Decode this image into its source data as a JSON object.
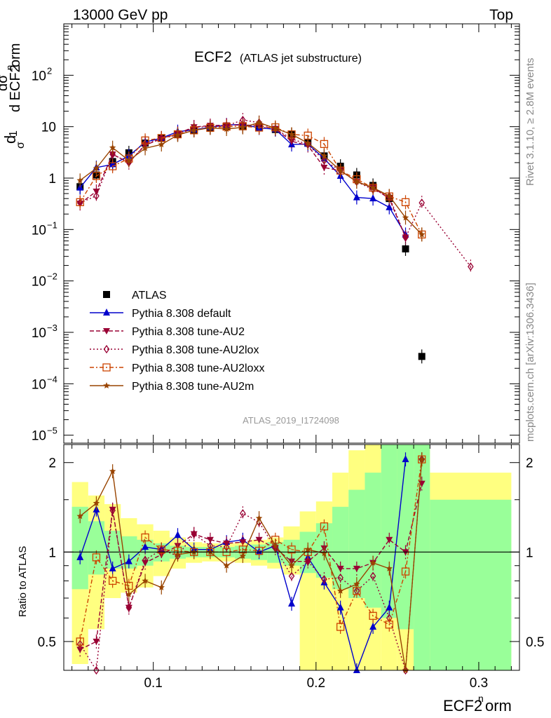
{
  "header": {
    "left": "13000 GeV pp",
    "right": "Top"
  },
  "side_labels": {
    "rivet": "Rivet 3.1.10, ≥ 2.8M events",
    "mcplots": "mcplots.cern.ch [arXiv:1306.3436]"
  },
  "chart_data": [
    {
      "type": "scatter",
      "panel": "main",
      "title": "ECF2",
      "subtitle": "(ATLAS jet substructure)",
      "analysis_tag": "ATLAS_2019_I1724098",
      "xlabel": "ECF2norm",
      "ylabel": "1/σ dσ/d ECF2norm",
      "xlim": [
        0.045,
        0.325
      ],
      "ylim": [
        7e-06,
        1000
      ],
      "yscale": "log",
      "x_ticks": [
        "0.1",
        "0.2",
        "0.3"
      ],
      "y_ticks": [
        "10^-5",
        "10^-4",
        "10^-3",
        "10^-2",
        "10^-1",
        "1",
        "10",
        "10^2"
      ],
      "legend_position": "lower-left",
      "series": [
        {
          "name": "ATLAS",
          "color": "#000000",
          "marker": "square",
          "x": [
            0.055,
            0.065,
            0.075,
            0.085,
            0.095,
            0.105,
            0.115,
            0.125,
            0.135,
            0.145,
            0.155,
            0.165,
            0.175,
            0.185,
            0.195,
            0.205,
            0.215,
            0.225,
            0.235,
            0.245,
            0.255,
            0.265
          ],
          "y": [
            0.68,
            1.15,
            2.1,
            3.1,
            4.8,
            5.9,
            7.0,
            8.5,
            9.5,
            10.0,
            10.0,
            9.5,
            8.8,
            7.0,
            4.8,
            2.7,
            1.7,
            1.15,
            0.72,
            0.4,
            0.042,
            0.00034
          ]
        },
        {
          "name": "Pythia 8.308 default",
          "color": "#0000cc",
          "marker": "triangle-up",
          "x": [
            0.055,
            0.065,
            0.075,
            0.085,
            0.095,
            0.105,
            0.115,
            0.125,
            0.135,
            0.145,
            0.155,
            0.165,
            0.175,
            0.185,
            0.195,
            0.205,
            0.215,
            0.225,
            0.235,
            0.245,
            0.255,
            0.265
          ],
          "y": [
            0.65,
            1.6,
            1.85,
            2.7,
            5.0,
            6.0,
            8.0,
            8.7,
            9.7,
            10.8,
            11.0,
            9.5,
            8.9,
            4.5,
            4.6,
            2.4,
            1.1,
            0.42,
            0.4,
            0.27,
            0.08,
            null
          ]
        },
        {
          "name": "Pythia 8.308 tune-AU2",
          "color": "#990033",
          "marker": "triangle-down",
          "x": [
            0.055,
            0.065,
            0.075,
            0.085,
            0.095,
            0.105,
            0.115,
            0.125,
            0.135,
            0.145,
            0.155,
            0.165,
            0.175,
            0.185,
            0.195,
            0.205,
            0.215,
            0.225,
            0.235,
            0.245,
            0.255,
            0.265
          ],
          "y": [
            0.32,
            0.55,
            2.9,
            2.0,
            4.4,
            5.8,
            7.4,
            9.8,
            10.5,
            10.7,
            10.8,
            10.5,
            9.1,
            5.2,
            4.3,
            1.6,
            1.4,
            0.85,
            0.65,
            0.4,
            0.07,
            null
          ]
        },
        {
          "name": "Pythia 8.308 tune-AU2lox",
          "color": "#990033",
          "marker": "diamond-open",
          "x": [
            0.055,
            0.065,
            0.075,
            0.085,
            0.095,
            0.105,
            0.115,
            0.125,
            0.135,
            0.145,
            0.155,
            0.165,
            0.175,
            0.185,
            0.195,
            0.205,
            0.215,
            0.225,
            0.235,
            0.245,
            0.255,
            0.265,
            0.295
          ],
          "y": [
            0.33,
            0.45,
            2.9,
            2.0,
            4.5,
            6.0,
            6.8,
            9.8,
            10.0,
            10.4,
            13.5,
            12.0,
            9.1,
            5.8,
            4.5,
            2.2,
            1.4,
            0.85,
            0.6,
            0.44,
            0.07,
            0.33,
            0.019
          ]
        },
        {
          "name": "Pythia 8.308 tune-AU2loxx",
          "color": "#cc4400",
          "marker": "square-open",
          "x": [
            0.055,
            0.065,
            0.075,
            0.085,
            0.095,
            0.105,
            0.115,
            0.125,
            0.135,
            0.145,
            0.155,
            0.165,
            0.175,
            0.185,
            0.195,
            0.205,
            0.215,
            0.225,
            0.235,
            0.245,
            0.255,
            0.265
          ],
          "y": [
            0.34,
            1.1,
            1.7,
            2.4,
            5.4,
            6.0,
            7.1,
            8.5,
            9.5,
            10.0,
            10.2,
            9.6,
            9.7,
            7.1,
            6.7,
            4.6,
            1.4,
            0.95,
            0.65,
            0.44,
            0.34,
            0.08
          ]
        },
        {
          "name": "Pythia 8.308 tune-AU2m",
          "color": "#994400",
          "marker": "star",
          "x": [
            0.055,
            0.065,
            0.075,
            0.085,
            0.095,
            0.105,
            0.115,
            0.125,
            0.135,
            0.145,
            0.155,
            0.165,
            0.175,
            0.185,
            0.195,
            0.205,
            0.215,
            0.225,
            0.235,
            0.245,
            0.255,
            0.265
          ],
          "y": [
            0.9,
            1.55,
            3.9,
            2.2,
            3.8,
            4.5,
            6.9,
            8.5,
            9.5,
            9.0,
            9.7,
            12.0,
            9.3,
            7.1,
            4.8,
            2.7,
            1.4,
            0.85,
            0.65,
            0.45,
            0.17,
            0.08
          ]
        }
      ]
    },
    {
      "type": "scatter",
      "panel": "ratio",
      "xlabel": "ECF2norm",
      "ylabel": "Ratio to ATLAS",
      "xlim": [
        0.045,
        0.325
      ],
      "ylim": [
        0.4,
        2.3
      ],
      "yscale": "log",
      "y_ticks": [
        "0.5",
        "1",
        "2"
      ],
      "reference_line": 1,
      "uncertainty_bands": [
        {
          "name": "stat",
          "color": "#99ff99",
          "bins": [
            [
              0.05,
              0.06,
              0.75,
              1.42
            ],
            [
              0.06,
              0.07,
              0.84,
              1.27
            ],
            [
              0.07,
              0.08,
              0.88,
              1.18
            ],
            [
              0.08,
              0.09,
              0.88,
              1.13
            ],
            [
              0.09,
              0.1,
              0.9,
              1.1
            ],
            [
              0.1,
              0.11,
              0.93,
              1.07
            ],
            [
              0.11,
              0.12,
              0.95,
              1.05
            ],
            [
              0.12,
              0.13,
              0.96,
              1.04
            ],
            [
              0.13,
              0.14,
              0.96,
              1.04
            ],
            [
              0.14,
              0.15,
              0.96,
              1.04
            ],
            [
              0.15,
              0.16,
              0.95,
              1.05
            ],
            [
              0.16,
              0.17,
              0.94,
              1.06
            ],
            [
              0.17,
              0.18,
              0.92,
              1.08
            ],
            [
              0.18,
              0.19,
              0.9,
              1.1
            ],
            [
              0.19,
              0.2,
              0.85,
              1.17
            ],
            [
              0.2,
              0.21,
              0.82,
              1.25
            ],
            [
              0.21,
              0.22,
              0.75,
              1.42
            ],
            [
              0.22,
              0.23,
              0.7,
              1.62
            ],
            [
              0.23,
              0.24,
              0.65,
              1.85
            ],
            [
              0.24,
              0.25,
              0.6,
              2.3
            ],
            [
              0.25,
              0.26,
              0.55,
              2.3
            ],
            [
              0.26,
              0.27,
              0.4,
              2.3
            ],
            [
              0.27,
              0.32,
              0.4,
              1.5
            ]
          ]
        },
        {
          "name": "syst",
          "color": "#ffff80",
          "bins": [
            [
              0.05,
              0.06,
              0.42,
              1.72
            ],
            [
              0.06,
              0.07,
              0.55,
              1.55
            ],
            [
              0.07,
              0.08,
              0.7,
              1.45
            ],
            [
              0.08,
              0.09,
              0.73,
              1.3
            ],
            [
              0.09,
              0.1,
              0.76,
              1.24
            ],
            [
              0.1,
              0.11,
              0.83,
              1.18
            ],
            [
              0.11,
              0.12,
              0.88,
              1.12
            ],
            [
              0.12,
              0.13,
              0.92,
              1.08
            ],
            [
              0.13,
              0.14,
              0.93,
              1.07
            ],
            [
              0.14,
              0.15,
              0.93,
              1.07
            ],
            [
              0.15,
              0.16,
              0.92,
              1.08
            ],
            [
              0.16,
              0.17,
              0.9,
              1.1
            ],
            [
              0.17,
              0.18,
              0.88,
              1.12
            ],
            [
              0.18,
              0.19,
              0.84,
              1.22
            ],
            [
              0.19,
              0.2,
              0.4,
              1.37
            ],
            [
              0.2,
              0.21,
              0.4,
              1.48
            ],
            [
              0.21,
              0.22,
              0.4,
              1.85
            ],
            [
              0.22,
              0.23,
              0.4,
              2.2
            ],
            [
              0.23,
              0.24,
              0.4,
              2.3
            ],
            [
              0.24,
              0.25,
              0.4,
              2.3
            ],
            [
              0.25,
              0.26,
              0.4,
              2.3
            ],
            [
              0.26,
              0.27,
              0.4,
              2.3
            ],
            [
              0.27,
              0.32,
              0.4,
              1.85
            ]
          ]
        }
      ],
      "series": [
        {
          "name": "Pythia 8.308 default",
          "color": "#0000cc",
          "marker": "triangle-up",
          "x": [
            0.055,
            0.065,
            0.075,
            0.085,
            0.095,
            0.105,
            0.115,
            0.125,
            0.135,
            0.145,
            0.155,
            0.165,
            0.175,
            0.185,
            0.195,
            0.205,
            0.215,
            0.225,
            0.235,
            0.245,
            0.255,
            0.265
          ],
          "y": [
            0.96,
            1.39,
            0.88,
            0.93,
            1.04,
            1.02,
            1.14,
            1.02,
            1.02,
            1.08,
            1.1,
            1.0,
            1.05,
            0.67,
            0.96,
            0.79,
            0.65,
            0.37,
            0.56,
            0.65,
            2.05,
            null
          ]
        },
        {
          "name": "Pythia 8.308 tune-AU2",
          "color": "#990033",
          "marker": "triangle-down",
          "x": [
            0.055,
            0.065,
            0.075,
            0.085,
            0.095,
            0.105,
            0.115,
            0.125,
            0.135,
            0.145,
            0.155,
            0.165,
            0.175,
            0.185,
            0.195,
            0.205,
            0.215,
            0.225,
            0.235,
            0.245,
            0.255,
            0.265
          ],
          "y": [
            0.47,
            0.5,
            1.39,
            0.65,
            0.92,
            0.98,
            1.05,
            1.15,
            1.1,
            1.07,
            1.08,
            1.1,
            1.03,
            0.93,
            0.93,
            1.03,
            0.88,
            0.88,
            0.92,
            1.1,
            1.0,
            1.7
          ]
        },
        {
          "name": "Pythia 8.308 tune-AU2lox",
          "color": "#990033",
          "marker": "diamond-open",
          "x": [
            0.055,
            0.065,
            0.075,
            0.085,
            0.095,
            0.105,
            0.115,
            0.125,
            0.135,
            0.145,
            0.155,
            0.165,
            0.175,
            0.185,
            0.195,
            0.205,
            0.215,
            0.225,
            0.235,
            0.245,
            0.255,
            0.265
          ],
          "y": [
            0.49,
            0.39,
            1.38,
            0.65,
            0.94,
            1.02,
            0.97,
            1.15,
            1.05,
            1.04,
            1.35,
            1.26,
            1.03,
            0.83,
            0.93,
            0.81,
            0.82,
            0.74,
            0.83,
            0.6,
            0.39,
            2.05
          ]
        },
        {
          "name": "Pythia 8.308 tune-AU2loxx",
          "color": "#cc4400",
          "marker": "square-open",
          "x": [
            0.055,
            0.065,
            0.075,
            0.085,
            0.095,
            0.105,
            0.115,
            0.125,
            0.135,
            0.145,
            0.155,
            0.165,
            0.175,
            0.185,
            0.195,
            0.205,
            0.215,
            0.225,
            0.235,
            0.245,
            0.255,
            0.265
          ],
          "y": [
            0.5,
            0.96,
            0.8,
            0.77,
            1.12,
            1.02,
            1.01,
            1.0,
            1.0,
            1.0,
            1.02,
            1.01,
            1.1,
            1.02,
            1.0,
            1.22,
            0.56,
            0.74,
            0.61,
            0.57,
            0.86,
            2.05
          ]
        },
        {
          "name": "Pythia 8.308 tune-AU2m",
          "color": "#994400",
          "marker": "star",
          "x": [
            0.055,
            0.065,
            0.075,
            0.085,
            0.095,
            0.105,
            0.115,
            0.125,
            0.135,
            0.145,
            0.155,
            0.165,
            0.175,
            0.185,
            0.195,
            0.205,
            0.215,
            0.225,
            0.235,
            0.245,
            0.255,
            0.265
          ],
          "y": [
            1.32,
            1.46,
            1.87,
            0.72,
            0.8,
            0.76,
            0.98,
            1.0,
            1.0,
            0.9,
            0.97,
            1.3,
            1.05,
            0.9,
            1.02,
            0.99,
            0.74,
            0.78,
            0.92,
            0.88,
            0.37,
            2.05
          ]
        }
      ]
    }
  ]
}
